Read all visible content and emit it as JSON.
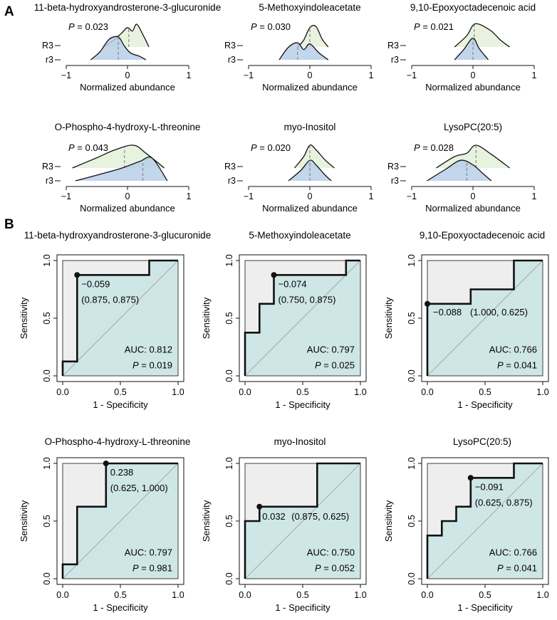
{
  "figure": {
    "panel_a_letter": "A",
    "panel_b_letter": "B",
    "p_label": "P",
    "colors": {
      "r3_fill": "#e3f0d9",
      "low_fill": "#b7cfe9",
      "roc_fill": "#cfe6e6",
      "roc_upper": "#eeeeee",
      "line": "#111111",
      "diag": "#b0b0b0",
      "median": "#888888"
    }
  },
  "density": {
    "xlabel": "Normalized abundance",
    "group_labels": [
      "R3",
      "r3"
    ],
    "panels": [
      {
        "title": "11-beta-hydroxyandrosterone-3-glucuronide",
        "p_text": " = 0.023",
        "ticks": [
          "−1",
          "0",
          "1"
        ]
      },
      {
        "title": "5-Methoxyindoleacetate",
        "p_text": " = 0.030",
        "ticks": [
          "−1",
          "0",
          "1"
        ]
      },
      {
        "title": "9,10-Epoxyoctadecenoic acid",
        "p_text": " = 0.021",
        "ticks": [
          "−1",
          "0",
          "1"
        ]
      },
      {
        "title": "O-Phospho-4-hydroxy-L-threonine",
        "p_text": " = 0.043",
        "ticks": [
          "−1",
          "0",
          "1"
        ]
      },
      {
        "title": "myo-Inositol",
        "p_text": " = 0.020",
        "ticks": [
          "−1",
          "0",
          "1"
        ]
      },
      {
        "title": "LysoPC(20:5)",
        "p_text": " = 0.028",
        "ticks": [
          "−1",
          "0",
          "1"
        ]
      }
    ]
  },
  "roc": {
    "xlabel": "1 - Specificity",
    "ylabel": "Sensitivity",
    "ticks": [
      "0.0",
      "0.5",
      "1.0"
    ],
    "panels": [
      {
        "title": "11-beta-hydroxyandrosterone-3-glucuronide",
        "thr": "−0.059",
        "coord": "(0.875, 0.875)",
        "auc": "AUC: 0.812",
        "p_text": " = 0.019"
      },
      {
        "title": "5-Methoxyindoleacetate",
        "thr": "−0.074",
        "coord": "(0.750, 0.875)",
        "auc": "AUC: 0.797",
        "p_text": " = 0.025"
      },
      {
        "title": "9,10-Epoxyoctadecenoic acid",
        "thr": "−0.088",
        "coord": "(1.000, 0.625)",
        "auc": "AUC: 0.766",
        "p_text": " = 0.041"
      },
      {
        "title": "O-Phospho-4-hydroxy-L-threonine",
        "thr": "0.238",
        "coord": "(0.625, 1.000)",
        "auc": "AUC: 0.797",
        "p_text": " = 0.981"
      },
      {
        "title": "myo-Inositol",
        "thr": "0.032",
        "coord": "(0.875, 0.625)",
        "auc": "AUC: 0.750",
        "p_text": " = 0.052"
      },
      {
        "title": "LysoPC(20:5)",
        "thr": "−0.091",
        "coord": "(0.625, 0.875)",
        "auc": "AUC: 0.766",
        "p_text": " = 0.041"
      }
    ]
  },
  "chart_data": [
    {
      "type": "area",
      "title": "11-beta-hydroxyandrosterone-3-glucuronide",
      "xlabel": "Normalized abundance",
      "xlim": [
        -1,
        1
      ],
      "p_value": 0.023,
      "series": [
        {
          "name": "R3",
          "x": [
            -0.4,
            -0.25,
            -0.1,
            0.0,
            0.08,
            0.15,
            0.25,
            0.35
          ],
          "y": [
            0.0,
            0.25,
            0.6,
            0.85,
            0.7,
            1.0,
            0.55,
            0.0
          ],
          "median": 0.02
        },
        {
          "name": "r3",
          "x": [
            -0.6,
            -0.45,
            -0.3,
            -0.15,
            -0.05,
            0.05,
            0.2,
            0.3
          ],
          "y": [
            0.0,
            0.35,
            0.9,
            1.0,
            0.6,
            0.3,
            0.15,
            0.0
          ],
          "median": -0.15
        }
      ]
    },
    {
      "type": "area",
      "title": "5-Methoxyindoleacetate",
      "xlabel": "Normalized abundance",
      "xlim": [
        -1,
        1
      ],
      "p_value": 0.03,
      "series": [
        {
          "name": "R3",
          "x": [
            -0.2,
            -0.1,
            0.0,
            0.1,
            0.2,
            0.3
          ],
          "y": [
            0.0,
            0.3,
            0.85,
            0.9,
            0.35,
            0.0
          ],
          "median": 0.0
        },
        {
          "name": "r3",
          "x": [
            -0.5,
            -0.35,
            -0.2,
            -0.1,
            0.0,
            0.15,
            0.3
          ],
          "y": [
            0.0,
            0.55,
            0.75,
            0.45,
            0.7,
            0.3,
            0.0
          ],
          "median": -0.2
        }
      ]
    },
    {
      "type": "area",
      "title": "9,10-Epoxyoctadecenoic acid",
      "xlabel": "Normalized abundance",
      "xlim": [
        -1,
        1
      ],
      "p_value": 0.021,
      "series": [
        {
          "name": "R3",
          "x": [
            -0.3,
            -0.1,
            0.0,
            0.1,
            0.3,
            0.45,
            0.6
          ],
          "y": [
            0.0,
            0.5,
            0.95,
            1.0,
            0.7,
            0.3,
            0.0
          ],
          "median": 0.02
        },
        {
          "name": "r3",
          "x": [
            -0.3,
            -0.15,
            0.0,
            0.1,
            0.25
          ],
          "y": [
            0.0,
            0.45,
            0.95,
            0.5,
            0.0
          ],
          "median": 0.0
        }
      ]
    },
    {
      "type": "area",
      "title": "O-Phospho-4-hydroxy-L-threonine",
      "xlabel": "Normalized abundance",
      "xlim": [
        -1,
        1
      ],
      "p_value": 0.043,
      "series": [
        {
          "name": "R3",
          "x": [
            -0.9,
            -0.5,
            -0.2,
            0.1,
            0.3,
            0.6
          ],
          "y": [
            0.0,
            0.45,
            0.8,
            1.0,
            0.65,
            0.0
          ],
          "median": -0.05
        },
        {
          "name": "r3",
          "x": [
            -0.85,
            -0.5,
            -0.1,
            0.2,
            0.4,
            0.65
          ],
          "y": [
            0.0,
            0.25,
            0.55,
            0.85,
            1.0,
            0.0
          ],
          "median": 0.25
        }
      ]
    },
    {
      "type": "area",
      "title": "myo-Inositol",
      "xlabel": "Normalized abundance",
      "xlim": [
        -1,
        1
      ],
      "p_value": 0.02,
      "series": [
        {
          "name": "R3",
          "x": [
            -0.25,
            -0.1,
            0.0,
            0.1,
            0.25,
            0.4
          ],
          "y": [
            0.0,
            0.5,
            1.0,
            0.8,
            0.35,
            0.0
          ],
          "median": 0.0
        },
        {
          "name": "r3",
          "x": [
            -0.35,
            -0.15,
            0.0,
            0.1,
            0.25,
            0.35
          ],
          "y": [
            0.0,
            0.45,
            0.9,
            0.7,
            0.25,
            0.0
          ],
          "median": 0.0
        }
      ]
    },
    {
      "type": "area",
      "title": "LysoPC(20:5)",
      "xlabel": "Normalized abundance",
      "xlim": [
        -1,
        1
      ],
      "p_value": 0.028,
      "series": [
        {
          "name": "R3",
          "x": [
            -0.6,
            -0.3,
            -0.1,
            0.05,
            0.3,
            0.6
          ],
          "y": [
            0.0,
            0.5,
            0.65,
            1.0,
            0.6,
            0.0
          ],
          "median": 0.05
        },
        {
          "name": "r3",
          "x": [
            -0.75,
            -0.45,
            -0.2,
            0.0,
            0.15,
            0.3
          ],
          "y": [
            0.0,
            0.5,
            0.9,
            0.7,
            0.35,
            0.0
          ],
          "median": -0.1
        }
      ]
    },
    {
      "type": "line",
      "title": "11-beta-hydroxyandrosterone-3-glucuronide",
      "xlabel": "1 - Specificity",
      "ylabel": "Sensitivity",
      "xlim": [
        0,
        1
      ],
      "ylim": [
        0,
        1
      ],
      "x": [
        0,
        0,
        0.125,
        0.125,
        0.75,
        0.75,
        1
      ],
      "y": [
        0,
        0.125,
        0.125,
        0.875,
        0.875,
        1,
        1
      ],
      "best_point": [
        0.125,
        0.875
      ],
      "auc": 0.812,
      "p_value": 0.019
    },
    {
      "type": "line",
      "title": "5-Methoxyindoleacetate",
      "xlabel": "1 - Specificity",
      "ylabel": "Sensitivity",
      "xlim": [
        0,
        1
      ],
      "ylim": [
        0,
        1
      ],
      "x": [
        0,
        0,
        0.125,
        0.125,
        0.25,
        0.25,
        0.875,
        0.875,
        1
      ],
      "y": [
        0,
        0.375,
        0.375,
        0.625,
        0.625,
        0.875,
        0.875,
        1,
        1
      ],
      "best_point": [
        0.25,
        0.875
      ],
      "auc": 0.797,
      "p_value": 0.025
    },
    {
      "type": "line",
      "title": "9,10-Epoxyoctadecenoic acid",
      "xlabel": "1 - Specificity",
      "ylabel": "Sensitivity",
      "xlim": [
        0,
        1
      ],
      "ylim": [
        0,
        1
      ],
      "x": [
        0,
        0,
        0.375,
        0.375,
        0.75,
        0.75,
        1
      ],
      "y": [
        0,
        0.625,
        0.625,
        0.75,
        0.75,
        1,
        1
      ],
      "best_point": [
        0,
        0.625
      ],
      "auc": 0.766,
      "p_value": 0.041
    },
    {
      "type": "line",
      "title": "O-Phospho-4-hydroxy-L-threonine",
      "xlabel": "1 - Specificity",
      "ylabel": "Sensitivity",
      "xlim": [
        0,
        1
      ],
      "ylim": [
        0,
        1
      ],
      "x": [
        0,
        0,
        0.125,
        0.125,
        0.375,
        0.375,
        1
      ],
      "y": [
        0,
        0.125,
        0.125,
        0.625,
        0.625,
        1,
        1
      ],
      "best_point": [
        0.375,
        1.0
      ],
      "auc": 0.797,
      "p_value": 0.981
    },
    {
      "type": "line",
      "title": "myo-Inositol",
      "xlabel": "1 - Specificity",
      "ylabel": "Sensitivity",
      "xlim": [
        0,
        1
      ],
      "ylim": [
        0,
        1
      ],
      "x": [
        0,
        0,
        0.125,
        0.125,
        0.625,
        0.625,
        1
      ],
      "y": [
        0,
        0.5,
        0.5,
        0.625,
        0.625,
        1,
        1
      ],
      "best_point": [
        0.125,
        0.625
      ],
      "auc": 0.75,
      "p_value": 0.052
    },
    {
      "type": "line",
      "title": "LysoPC(20:5)",
      "xlabel": "1 - Specificity",
      "ylabel": "Sensitivity",
      "xlim": [
        0,
        1
      ],
      "ylim": [
        0,
        1
      ],
      "x": [
        0,
        0,
        0.125,
        0.125,
        0.25,
        0.25,
        0.375,
        0.375,
        0.75,
        0.75,
        1
      ],
      "y": [
        0,
        0.375,
        0.375,
        0.5,
        0.5,
        0.625,
        0.625,
        0.875,
        0.875,
        1,
        1
      ],
      "best_point": [
        0.375,
        0.875
      ],
      "auc": 0.766,
      "p_value": 0.041
    }
  ]
}
